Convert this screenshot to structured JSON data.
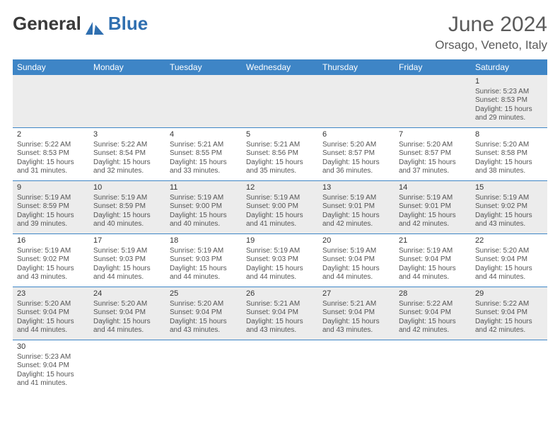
{
  "brand": {
    "part1": "General",
    "part2": "Blue"
  },
  "header": {
    "month_year": "June 2024",
    "location": "Orsago, Veneto, Italy"
  },
  "colors": {
    "header_blue": "#3e85c6",
    "alt_row": "#ececec",
    "text": "#222222",
    "subtext": "#555555"
  },
  "day_names": [
    "Sunday",
    "Monday",
    "Tuesday",
    "Wednesday",
    "Thursday",
    "Friday",
    "Saturday"
  ],
  "weeks": [
    [
      {
        "empty": true
      },
      {
        "empty": true
      },
      {
        "empty": true
      },
      {
        "empty": true
      },
      {
        "empty": true
      },
      {
        "empty": true
      },
      {
        "day": "1",
        "l1": "Sunrise: 5:23 AM",
        "l2": "Sunset: 8:53 PM",
        "l3": "Daylight: 15 hours",
        "l4": "and 29 minutes."
      }
    ],
    [
      {
        "day": "2",
        "l1": "Sunrise: 5:22 AM",
        "l2": "Sunset: 8:53 PM",
        "l3": "Daylight: 15 hours",
        "l4": "and 31 minutes."
      },
      {
        "day": "3",
        "l1": "Sunrise: 5:22 AM",
        "l2": "Sunset: 8:54 PM",
        "l3": "Daylight: 15 hours",
        "l4": "and 32 minutes."
      },
      {
        "day": "4",
        "l1": "Sunrise: 5:21 AM",
        "l2": "Sunset: 8:55 PM",
        "l3": "Daylight: 15 hours",
        "l4": "and 33 minutes."
      },
      {
        "day": "5",
        "l1": "Sunrise: 5:21 AM",
        "l2": "Sunset: 8:56 PM",
        "l3": "Daylight: 15 hours",
        "l4": "and 35 minutes."
      },
      {
        "day": "6",
        "l1": "Sunrise: 5:20 AM",
        "l2": "Sunset: 8:57 PM",
        "l3": "Daylight: 15 hours",
        "l4": "and 36 minutes."
      },
      {
        "day": "7",
        "l1": "Sunrise: 5:20 AM",
        "l2": "Sunset: 8:57 PM",
        "l3": "Daylight: 15 hours",
        "l4": "and 37 minutes."
      },
      {
        "day": "8",
        "l1": "Sunrise: 5:20 AM",
        "l2": "Sunset: 8:58 PM",
        "l3": "Daylight: 15 hours",
        "l4": "and 38 minutes."
      }
    ],
    [
      {
        "day": "9",
        "l1": "Sunrise: 5:19 AM",
        "l2": "Sunset: 8:59 PM",
        "l3": "Daylight: 15 hours",
        "l4": "and 39 minutes."
      },
      {
        "day": "10",
        "l1": "Sunrise: 5:19 AM",
        "l2": "Sunset: 8:59 PM",
        "l3": "Daylight: 15 hours",
        "l4": "and 40 minutes."
      },
      {
        "day": "11",
        "l1": "Sunrise: 5:19 AM",
        "l2": "Sunset: 9:00 PM",
        "l3": "Daylight: 15 hours",
        "l4": "and 40 minutes."
      },
      {
        "day": "12",
        "l1": "Sunrise: 5:19 AM",
        "l2": "Sunset: 9:00 PM",
        "l3": "Daylight: 15 hours",
        "l4": "and 41 minutes."
      },
      {
        "day": "13",
        "l1": "Sunrise: 5:19 AM",
        "l2": "Sunset: 9:01 PM",
        "l3": "Daylight: 15 hours",
        "l4": "and 42 minutes."
      },
      {
        "day": "14",
        "l1": "Sunrise: 5:19 AM",
        "l2": "Sunset: 9:01 PM",
        "l3": "Daylight: 15 hours",
        "l4": "and 42 minutes."
      },
      {
        "day": "15",
        "l1": "Sunrise: 5:19 AM",
        "l2": "Sunset: 9:02 PM",
        "l3": "Daylight: 15 hours",
        "l4": "and 43 minutes."
      }
    ],
    [
      {
        "day": "16",
        "l1": "Sunrise: 5:19 AM",
        "l2": "Sunset: 9:02 PM",
        "l3": "Daylight: 15 hours",
        "l4": "and 43 minutes."
      },
      {
        "day": "17",
        "l1": "Sunrise: 5:19 AM",
        "l2": "Sunset: 9:03 PM",
        "l3": "Daylight: 15 hours",
        "l4": "and 44 minutes."
      },
      {
        "day": "18",
        "l1": "Sunrise: 5:19 AM",
        "l2": "Sunset: 9:03 PM",
        "l3": "Daylight: 15 hours",
        "l4": "and 44 minutes."
      },
      {
        "day": "19",
        "l1": "Sunrise: 5:19 AM",
        "l2": "Sunset: 9:03 PM",
        "l3": "Daylight: 15 hours",
        "l4": "and 44 minutes."
      },
      {
        "day": "20",
        "l1": "Sunrise: 5:19 AM",
        "l2": "Sunset: 9:04 PM",
        "l3": "Daylight: 15 hours",
        "l4": "and 44 minutes."
      },
      {
        "day": "21",
        "l1": "Sunrise: 5:19 AM",
        "l2": "Sunset: 9:04 PM",
        "l3": "Daylight: 15 hours",
        "l4": "and 44 minutes."
      },
      {
        "day": "22",
        "l1": "Sunrise: 5:20 AM",
        "l2": "Sunset: 9:04 PM",
        "l3": "Daylight: 15 hours",
        "l4": "and 44 minutes."
      }
    ],
    [
      {
        "day": "23",
        "l1": "Sunrise: 5:20 AM",
        "l2": "Sunset: 9:04 PM",
        "l3": "Daylight: 15 hours",
        "l4": "and 44 minutes."
      },
      {
        "day": "24",
        "l1": "Sunrise: 5:20 AM",
        "l2": "Sunset: 9:04 PM",
        "l3": "Daylight: 15 hours",
        "l4": "and 44 minutes."
      },
      {
        "day": "25",
        "l1": "Sunrise: 5:20 AM",
        "l2": "Sunset: 9:04 PM",
        "l3": "Daylight: 15 hours",
        "l4": "and 43 minutes."
      },
      {
        "day": "26",
        "l1": "Sunrise: 5:21 AM",
        "l2": "Sunset: 9:04 PM",
        "l3": "Daylight: 15 hours",
        "l4": "and 43 minutes."
      },
      {
        "day": "27",
        "l1": "Sunrise: 5:21 AM",
        "l2": "Sunset: 9:04 PM",
        "l3": "Daylight: 15 hours",
        "l4": "and 43 minutes."
      },
      {
        "day": "28",
        "l1": "Sunrise: 5:22 AM",
        "l2": "Sunset: 9:04 PM",
        "l3": "Daylight: 15 hours",
        "l4": "and 42 minutes."
      },
      {
        "day": "29",
        "l1": "Sunrise: 5:22 AM",
        "l2": "Sunset: 9:04 PM",
        "l3": "Daylight: 15 hours",
        "l4": "and 42 minutes."
      }
    ],
    [
      {
        "day": "30",
        "l1": "Sunrise: 5:23 AM",
        "l2": "Sunset: 9:04 PM",
        "l3": "Daylight: 15 hours",
        "l4": "and 41 minutes."
      },
      {
        "empty": true
      },
      {
        "empty": true
      },
      {
        "empty": true
      },
      {
        "empty": true
      },
      {
        "empty": true
      },
      {
        "empty": true
      }
    ]
  ]
}
